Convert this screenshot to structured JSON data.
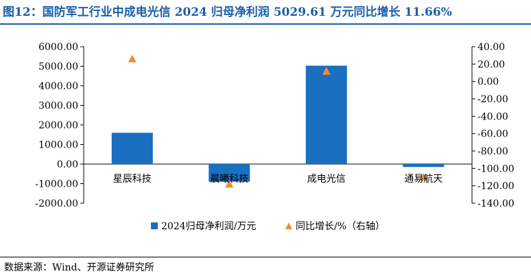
{
  "title": "图12：国防军工行业中成电光信 2024 归母净利润 5029.61 万元同比增长 11.66%",
  "source": "数据来源：Wind、开源证券研究所",
  "colors": {
    "title": "#1a5fa8",
    "bar": "#1a6fc0",
    "marker": "#f08a30",
    "axis": "#000000"
  },
  "chart_data": {
    "type": "bar",
    "categories": [
      "星辰科技",
      "晨曦科技",
      "成电光信",
      "通易航天"
    ],
    "series": [
      {
        "name": "2024归母净利润/万元",
        "type": "bar",
        "axis": "left",
        "values": [
          1600,
          -900,
          5029.61,
          -150
        ]
      },
      {
        "name": "同比增长/%（右轴）",
        "type": "scatter",
        "marker": "triangle",
        "axis": "right",
        "values": [
          26,
          -118,
          11.66,
          -110
        ]
      }
    ],
    "y_left": {
      "min": -2000,
      "max": 6000,
      "step": 1000,
      "ticks": [
        "6000.00",
        "5000.00",
        "4000.00",
        "3000.00",
        "2000.00",
        "1000.00",
        "0.00",
        "-1000.00",
        "-2000.00"
      ]
    },
    "y_right": {
      "min": -140,
      "max": 40,
      "step": 20,
      "ticks": [
        "40.00",
        "20.00",
        "0.00",
        "-20.00",
        "-40.00",
        "-60.00",
        "-80.00",
        "-100.00",
        "-120.00",
        "-140.00"
      ]
    },
    "legend_position": "bottom",
    "grid": false
  }
}
